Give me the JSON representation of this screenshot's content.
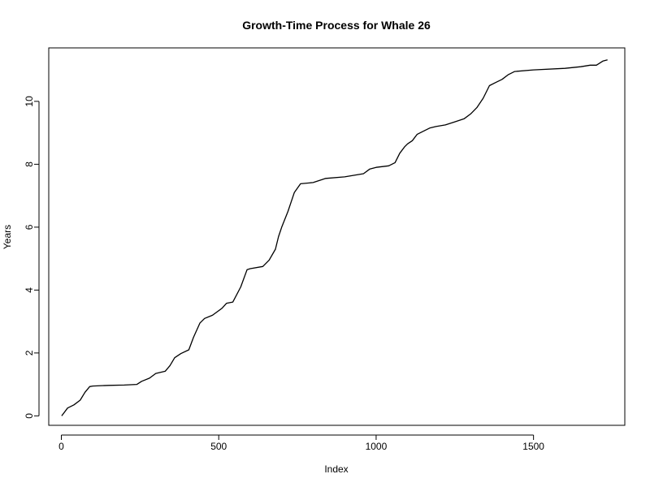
{
  "chart_data": {
    "type": "line",
    "title": "Growth-Time Process for Whale 26",
    "xlabel": "Index",
    "ylabel": "Years",
    "xlim": [
      -40,
      1790
    ],
    "ylim": [
      -0.3,
      11.7
    ],
    "x_ticks": [
      0,
      500,
      1000,
      1500
    ],
    "y_ticks": [
      0,
      2,
      4,
      6,
      8,
      10
    ],
    "grid": false,
    "legend": "none",
    "series": [
      {
        "color": "#000000",
        "x": [
          1,
          20,
          40,
          60,
          75,
          90,
          100,
          150,
          200,
          240,
          255,
          280,
          300,
          330,
          345,
          360,
          380,
          405,
          420,
          440,
          455,
          480,
          510,
          525,
          545,
          570,
          590,
          600,
          640,
          660,
          680,
          690,
          700,
          720,
          740,
          760,
          800,
          840,
          900,
          960,
          980,
          1000,
          1040,
          1060,
          1075,
          1090,
          1100,
          1115,
          1130,
          1150,
          1170,
          1190,
          1220,
          1250,
          1280,
          1300,
          1320,
          1340,
          1360,
          1380,
          1400,
          1420,
          1440,
          1500,
          1600,
          1650,
          1680,
          1700,
          1720,
          1735
        ],
        "y": [
          0.0,
          0.25,
          0.35,
          0.5,
          0.75,
          0.93,
          0.95,
          0.97,
          0.98,
          1.0,
          1.1,
          1.2,
          1.35,
          1.42,
          1.6,
          1.85,
          1.98,
          2.1,
          2.5,
          2.95,
          3.1,
          3.2,
          3.42,
          3.58,
          3.62,
          4.1,
          4.65,
          4.68,
          4.75,
          4.95,
          5.3,
          5.7,
          6.0,
          6.5,
          7.1,
          7.38,
          7.42,
          7.55,
          7.6,
          7.7,
          7.85,
          7.9,
          7.95,
          8.05,
          8.35,
          8.55,
          8.65,
          8.75,
          8.95,
          9.05,
          9.15,
          9.2,
          9.25,
          9.35,
          9.45,
          9.6,
          9.8,
          10.1,
          10.5,
          10.6,
          10.7,
          10.85,
          10.95,
          11.0,
          11.05,
          11.1,
          11.15,
          11.15,
          11.28,
          11.32
        ]
      }
    ]
  }
}
